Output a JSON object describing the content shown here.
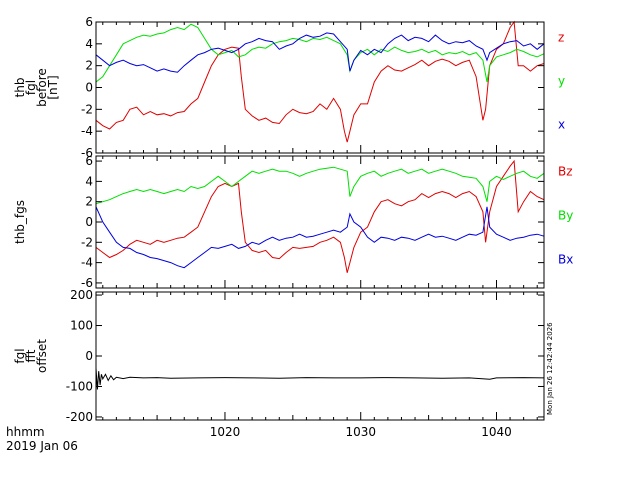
{
  "chart_data": [
    {
      "type": "line",
      "ylabel_lines": [
        "thb",
        "fgl",
        "before",
        "[nT]"
      ],
      "ylim": [
        -6,
        6
      ],
      "yticks": [
        -6,
        -4,
        -2,
        0,
        2,
        4,
        6
      ],
      "legend_placement": "right",
      "series": [
        {
          "name": "z",
          "color": "#e00000",
          "x": [
            1010.5,
            1011,
            1011.5,
            1012,
            1012.5,
            1013,
            1013.5,
            1014,
            1014.5,
            1015,
            1015.5,
            1016,
            1016.5,
            1017,
            1017.5,
            1018,
            1018.5,
            1019,
            1019.5,
            1020,
            1020.5,
            1021,
            1021.2,
            1021.5,
            1022,
            1022.5,
            1023,
            1023.5,
            1024,
            1024.5,
            1025,
            1025.5,
            1026,
            1026.5,
            1027,
            1027.5,
            1028,
            1028.5,
            1028.8,
            1029,
            1029.2,
            1029.5,
            1030,
            1030.5,
            1031,
            1031.5,
            1032,
            1032.5,
            1033,
            1033.5,
            1034,
            1034.5,
            1035,
            1035.5,
            1036,
            1036.5,
            1037,
            1037.5,
            1038,
            1038.5,
            1039,
            1039.2,
            1039.5,
            1040,
            1040.5,
            1041,
            1041.3,
            1041.6,
            1042,
            1042.5,
            1043,
            1043.5
          ],
          "y": [
            -3.0,
            -3.5,
            -3.8,
            -3.2,
            -3.0,
            -2.0,
            -1.8,
            -2.5,
            -2.2,
            -2.5,
            -2.4,
            -2.6,
            -2.3,
            -2.2,
            -1.5,
            -1.0,
            0.5,
            2.0,
            3.0,
            3.5,
            3.7,
            3.6,
            1.0,
            -2.0,
            -2.6,
            -3.0,
            -2.8,
            -3.2,
            -3.3,
            -2.5,
            -2.0,
            -2.3,
            -2.4,
            -2.2,
            -1.5,
            -2.0,
            -1.0,
            -2.0,
            -4.0,
            -5.0,
            -4.0,
            -2.5,
            -1.5,
            -1.5,
            0.5,
            1.5,
            2.0,
            1.6,
            1.5,
            1.8,
            2.1,
            2.5,
            2.0,
            2.4,
            2.6,
            2.4,
            2.0,
            2.3,
            2.5,
            1.0,
            -3.0,
            -2.0,
            2.0,
            3.5,
            4.0,
            5.5,
            6.0,
            2.0,
            2.0,
            1.5,
            2.0,
            2.2
          ]
        },
        {
          "name": "y",
          "color": "#00e000",
          "x": [
            1010.5,
            1011,
            1011.5,
            1012,
            1012.5,
            1013,
            1013.5,
            1014,
            1014.5,
            1015,
            1015.5,
            1016,
            1016.5,
            1017,
            1017.5,
            1018,
            1018.5,
            1019,
            1019.5,
            1020,
            1020.5,
            1021,
            1021.5,
            1022,
            1022.5,
            1023,
            1023.5,
            1024,
            1024.5,
            1025,
            1025.5,
            1026,
            1026.5,
            1027,
            1027.5,
            1028,
            1028.5,
            1029,
            1029.2,
            1029.5,
            1030,
            1030.5,
            1031,
            1031.5,
            1032,
            1032.5,
            1033,
            1033.5,
            1034,
            1034.5,
            1035,
            1035.5,
            1036,
            1036.5,
            1037,
            1037.5,
            1038,
            1038.5,
            1039,
            1039.3,
            1039.5,
            1040,
            1040.5,
            1041,
            1041.5,
            1042,
            1042.5,
            1043,
            1043.5
          ],
          "y": [
            0.5,
            1.0,
            2.0,
            3.0,
            4.0,
            4.3,
            4.6,
            4.8,
            4.7,
            4.9,
            5.0,
            5.3,
            5.5,
            5.3,
            5.8,
            5.5,
            4.5,
            3.5,
            3.0,
            3.2,
            3.4,
            2.8,
            3.0,
            3.5,
            3.7,
            3.6,
            4.0,
            4.2,
            4.3,
            4.5,
            4.4,
            4.2,
            4.5,
            4.4,
            4.6,
            4.3,
            4.0,
            3.0,
            1.5,
            2.5,
            3.2,
            3.5,
            3.0,
            3.5,
            3.3,
            3.7,
            3.4,
            3.2,
            3.3,
            3.5,
            3.2,
            3.4,
            3.0,
            3.2,
            3.1,
            3.3,
            3.0,
            3.2,
            2.5,
            0.5,
            2.0,
            2.8,
            3.0,
            3.2,
            3.5,
            3.3,
            3.0,
            2.8,
            3.1
          ]
        },
        {
          "name": "x",
          "color": "#0000e0",
          "x": [
            1010.5,
            1011,
            1011.5,
            1012,
            1012.5,
            1013,
            1013.5,
            1014,
            1014.5,
            1015,
            1015.5,
            1016,
            1016.5,
            1017,
            1017.5,
            1018,
            1018.5,
            1019,
            1019.5,
            1020,
            1020.5,
            1021,
            1021.5,
            1022,
            1022.5,
            1023,
            1023.5,
            1024,
            1024.5,
            1025,
            1025.5,
            1026,
            1026.5,
            1027,
            1027.5,
            1028,
            1028.5,
            1029,
            1029.2,
            1029.5,
            1030,
            1030.5,
            1031,
            1031.5,
            1032,
            1032.5,
            1033,
            1033.5,
            1034,
            1034.5,
            1035,
            1035.5,
            1036,
            1036.5,
            1037,
            1037.5,
            1038,
            1038.5,
            1039,
            1039.3,
            1039.5,
            1040,
            1040.5,
            1041,
            1041.5,
            1042,
            1042.5,
            1043,
            1043.5
          ],
          "y": [
            3.0,
            2.5,
            2.0,
            2.3,
            2.5,
            2.2,
            2.0,
            2.1,
            1.8,
            1.5,
            1.7,
            1.5,
            1.4,
            2.0,
            2.5,
            3.0,
            3.2,
            3.5,
            3.6,
            3.4,
            3.2,
            3.5,
            4.0,
            4.2,
            4.5,
            4.3,
            4.2,
            3.5,
            3.8,
            4.0,
            4.5,
            4.8,
            4.6,
            4.7,
            5.0,
            4.9,
            4.2,
            3.5,
            1.5,
            2.5,
            3.4,
            3.0,
            3.5,
            3.2,
            4.0,
            4.5,
            4.8,
            4.3,
            4.6,
            4.5,
            4.2,
            4.8,
            4.3,
            4.0,
            4.2,
            4.1,
            4.3,
            3.8,
            3.5,
            2.5,
            3.2,
            3.6,
            4.0,
            4.2,
            4.3,
            3.8,
            4.0,
            3.5,
            4.0
          ]
        }
      ],
      "legend": [
        "z",
        "y",
        "x"
      ]
    },
    {
      "type": "line",
      "ylabel_lines": [
        "thb_fgs"
      ],
      "ylim": [
        -6.5,
        6.5
      ],
      "yticks": [
        -6,
        -4,
        -2,
        0,
        2,
        4,
        6
      ],
      "legend_placement": "right",
      "series": [
        {
          "name": "Bz",
          "color": "#e00000",
          "x": [
            1010.5,
            1011,
            1011.5,
            1012,
            1012.5,
            1013,
            1013.5,
            1014,
            1014.5,
            1015,
            1015.5,
            1016,
            1016.5,
            1017,
            1017.5,
            1018,
            1018.5,
            1019,
            1019.5,
            1020,
            1020.5,
            1021,
            1021.2,
            1021.5,
            1022,
            1022.5,
            1023,
            1023.5,
            1024,
            1024.5,
            1025,
            1025.5,
            1026,
            1026.5,
            1027,
            1027.5,
            1028,
            1028.5,
            1028.8,
            1029,
            1029.2,
            1029.5,
            1030,
            1030.5,
            1031,
            1031.5,
            1032,
            1032.5,
            1033,
            1033.5,
            1034,
            1034.5,
            1035,
            1035.5,
            1036,
            1036.5,
            1037,
            1037.5,
            1038,
            1038.5,
            1039,
            1039.2,
            1039.5,
            1040,
            1040.5,
            1041,
            1041.3,
            1041.6,
            1042,
            1042.5,
            1043,
            1043.5
          ],
          "y": [
            -2.5,
            -3.0,
            -3.5,
            -3.2,
            -2.8,
            -2.2,
            -1.8,
            -2.0,
            -2.2,
            -1.8,
            -2.0,
            -1.8,
            -1.6,
            -1.5,
            -1.0,
            -0.5,
            1.0,
            2.5,
            3.5,
            3.8,
            3.5,
            3.8,
            1.0,
            -2.0,
            -2.8,
            -3.0,
            -2.8,
            -3.5,
            -3.6,
            -3.0,
            -2.5,
            -2.6,
            -2.5,
            -2.4,
            -2.0,
            -1.8,
            -1.5,
            -2.0,
            -3.5,
            -5.0,
            -4.0,
            -2.5,
            -1.0,
            -0.5,
            1.0,
            2.0,
            2.2,
            1.8,
            1.6,
            2.0,
            2.2,
            2.8,
            2.4,
            2.8,
            3.0,
            2.8,
            2.4,
            2.8,
            3.0,
            2.5,
            1.0,
            -2.0,
            1.0,
            3.5,
            4.5,
            5.5,
            6.0,
            1.0,
            2.0,
            3.0,
            2.5,
            2.2
          ]
        },
        {
          "name": "By",
          "color": "#00e000",
          "x": [
            1010.5,
            1011,
            1011.5,
            1012,
            1012.5,
            1013,
            1013.5,
            1014,
            1014.5,
            1015,
            1015.5,
            1016,
            1016.5,
            1017,
            1017.5,
            1018,
            1018.5,
            1019,
            1019.5,
            1020,
            1020.5,
            1021,
            1021.5,
            1022,
            1022.5,
            1023,
            1023.5,
            1024,
            1024.5,
            1025,
            1025.5,
            1026,
            1026.5,
            1027,
            1027.5,
            1028,
            1028.5,
            1029,
            1029.2,
            1029.5,
            1030,
            1030.5,
            1031,
            1031.5,
            1032,
            1032.5,
            1033,
            1033.5,
            1034,
            1034.5,
            1035,
            1035.5,
            1036,
            1036.5,
            1037,
            1037.5,
            1038,
            1038.5,
            1039,
            1039.3,
            1039.5,
            1040,
            1040.5,
            1041,
            1041.5,
            1042,
            1042.5,
            1043,
            1043.5
          ],
          "y": [
            1.8,
            2.0,
            2.2,
            2.5,
            2.8,
            3.0,
            3.2,
            3.0,
            3.2,
            3.0,
            2.8,
            3.0,
            3.2,
            3.0,
            3.5,
            3.3,
            3.5,
            4.0,
            4.5,
            4.0,
            3.5,
            4.0,
            4.5,
            5.0,
            4.8,
            5.0,
            5.2,
            5.0,
            5.0,
            4.8,
            4.5,
            4.8,
            5.0,
            5.2,
            5.3,
            5.4,
            5.2,
            5.0,
            2.5,
            3.5,
            4.5,
            4.8,
            5.0,
            4.5,
            4.8,
            5.0,
            5.2,
            4.8,
            5.0,
            5.2,
            4.8,
            5.0,
            5.2,
            5.0,
            4.8,
            4.5,
            4.4,
            4.3,
            3.5,
            2.0,
            4.0,
            4.5,
            4.2,
            4.5,
            4.8,
            5.0,
            4.5,
            4.3,
            4.8
          ]
        },
        {
          "name": "Bx",
          "color": "#0000e0",
          "x": [
            1010.5,
            1011,
            1011.5,
            1012,
            1012.5,
            1013,
            1013.5,
            1014,
            1014.5,
            1015,
            1015.5,
            1016,
            1016.5,
            1017,
            1017.5,
            1018,
            1018.5,
            1019,
            1019.5,
            1020,
            1020.5,
            1021,
            1021.5,
            1022,
            1022.5,
            1023,
            1023.5,
            1024,
            1024.5,
            1025,
            1025.5,
            1026,
            1026.5,
            1027,
            1027.5,
            1028,
            1028.5,
            1029,
            1029.2,
            1029.5,
            1030,
            1030.5,
            1031,
            1031.5,
            1032,
            1032.5,
            1033,
            1033.5,
            1034,
            1034.5,
            1035,
            1035.5,
            1036,
            1036.5,
            1037,
            1037.5,
            1038,
            1038.5,
            1039,
            1039.3,
            1039.5,
            1040,
            1040.5,
            1041,
            1041.5,
            1042,
            1042.5,
            1043,
            1043.5
          ],
          "y": [
            1.5,
            0.0,
            -1.0,
            -2.0,
            -2.5,
            -2.6,
            -3.0,
            -3.2,
            -3.5,
            -3.6,
            -3.8,
            -4.0,
            -4.3,
            -4.5,
            -4.0,
            -3.5,
            -3.0,
            -2.5,
            -2.6,
            -2.4,
            -2.2,
            -2.6,
            -2.4,
            -2.0,
            -2.2,
            -1.8,
            -1.5,
            -1.8,
            -1.6,
            -1.5,
            -1.2,
            -1.5,
            -1.4,
            -1.2,
            -1.0,
            -0.8,
            -1.0,
            -0.5,
            0.8,
            0.0,
            -0.5,
            -1.5,
            -2.0,
            -1.5,
            -1.6,
            -1.8,
            -1.5,
            -1.6,
            -1.8,
            -1.5,
            -1.2,
            -1.5,
            -1.4,
            -1.6,
            -1.8,
            -1.5,
            -1.2,
            -1.3,
            -1.0,
            1.5,
            -0.5,
            -1.2,
            -1.5,
            -1.8,
            -1.6,
            -1.5,
            -1.3,
            -1.2,
            -1.4
          ]
        }
      ],
      "legend": [
        "Bz",
        "By",
        "Bx"
      ]
    },
    {
      "type": "line",
      "ylabel_lines": [
        "fgl",
        "fft",
        "offset"
      ],
      "ylim": [
        -210,
        210
      ],
      "yticks": [
        -200,
        -100,
        0,
        100,
        200
      ],
      "series": [
        {
          "name": "",
          "color": "#000000",
          "x": [
            1010.5,
            1010.6,
            1010.7,
            1010.8,
            1010.9,
            1011,
            1011.2,
            1011.4,
            1011.6,
            1011.8,
            1012,
            1012.5,
            1013,
            1014,
            1015,
            1016,
            1018,
            1020,
            1022,
            1024,
            1026,
            1028,
            1030,
            1032,
            1034,
            1036,
            1038,
            1039.5,
            1040,
            1042,
            1043.5
          ],
          "y": [
            -40,
            -110,
            -50,
            -95,
            -60,
            -75,
            -60,
            -80,
            -65,
            -78,
            -70,
            -74,
            -70,
            -72,
            -71,
            -73,
            -72,
            -71,
            -72,
            -73,
            -71,
            -72,
            -72,
            -71,
            -72,
            -73,
            -72,
            -76,
            -72,
            -71,
            -72
          ]
        }
      ]
    }
  ],
  "x_axis": {
    "xlim": [
      1010.5,
      1043.5
    ],
    "ticks": [
      1020,
      1030,
      1040
    ],
    "tick_labels": [
      "1020",
      "1030",
      "1040"
    ],
    "label_line1": "hhmm",
    "label_line2": "2019 Jan 06"
  },
  "timestamp": "Mon Jan 26 12:42:44 2026"
}
